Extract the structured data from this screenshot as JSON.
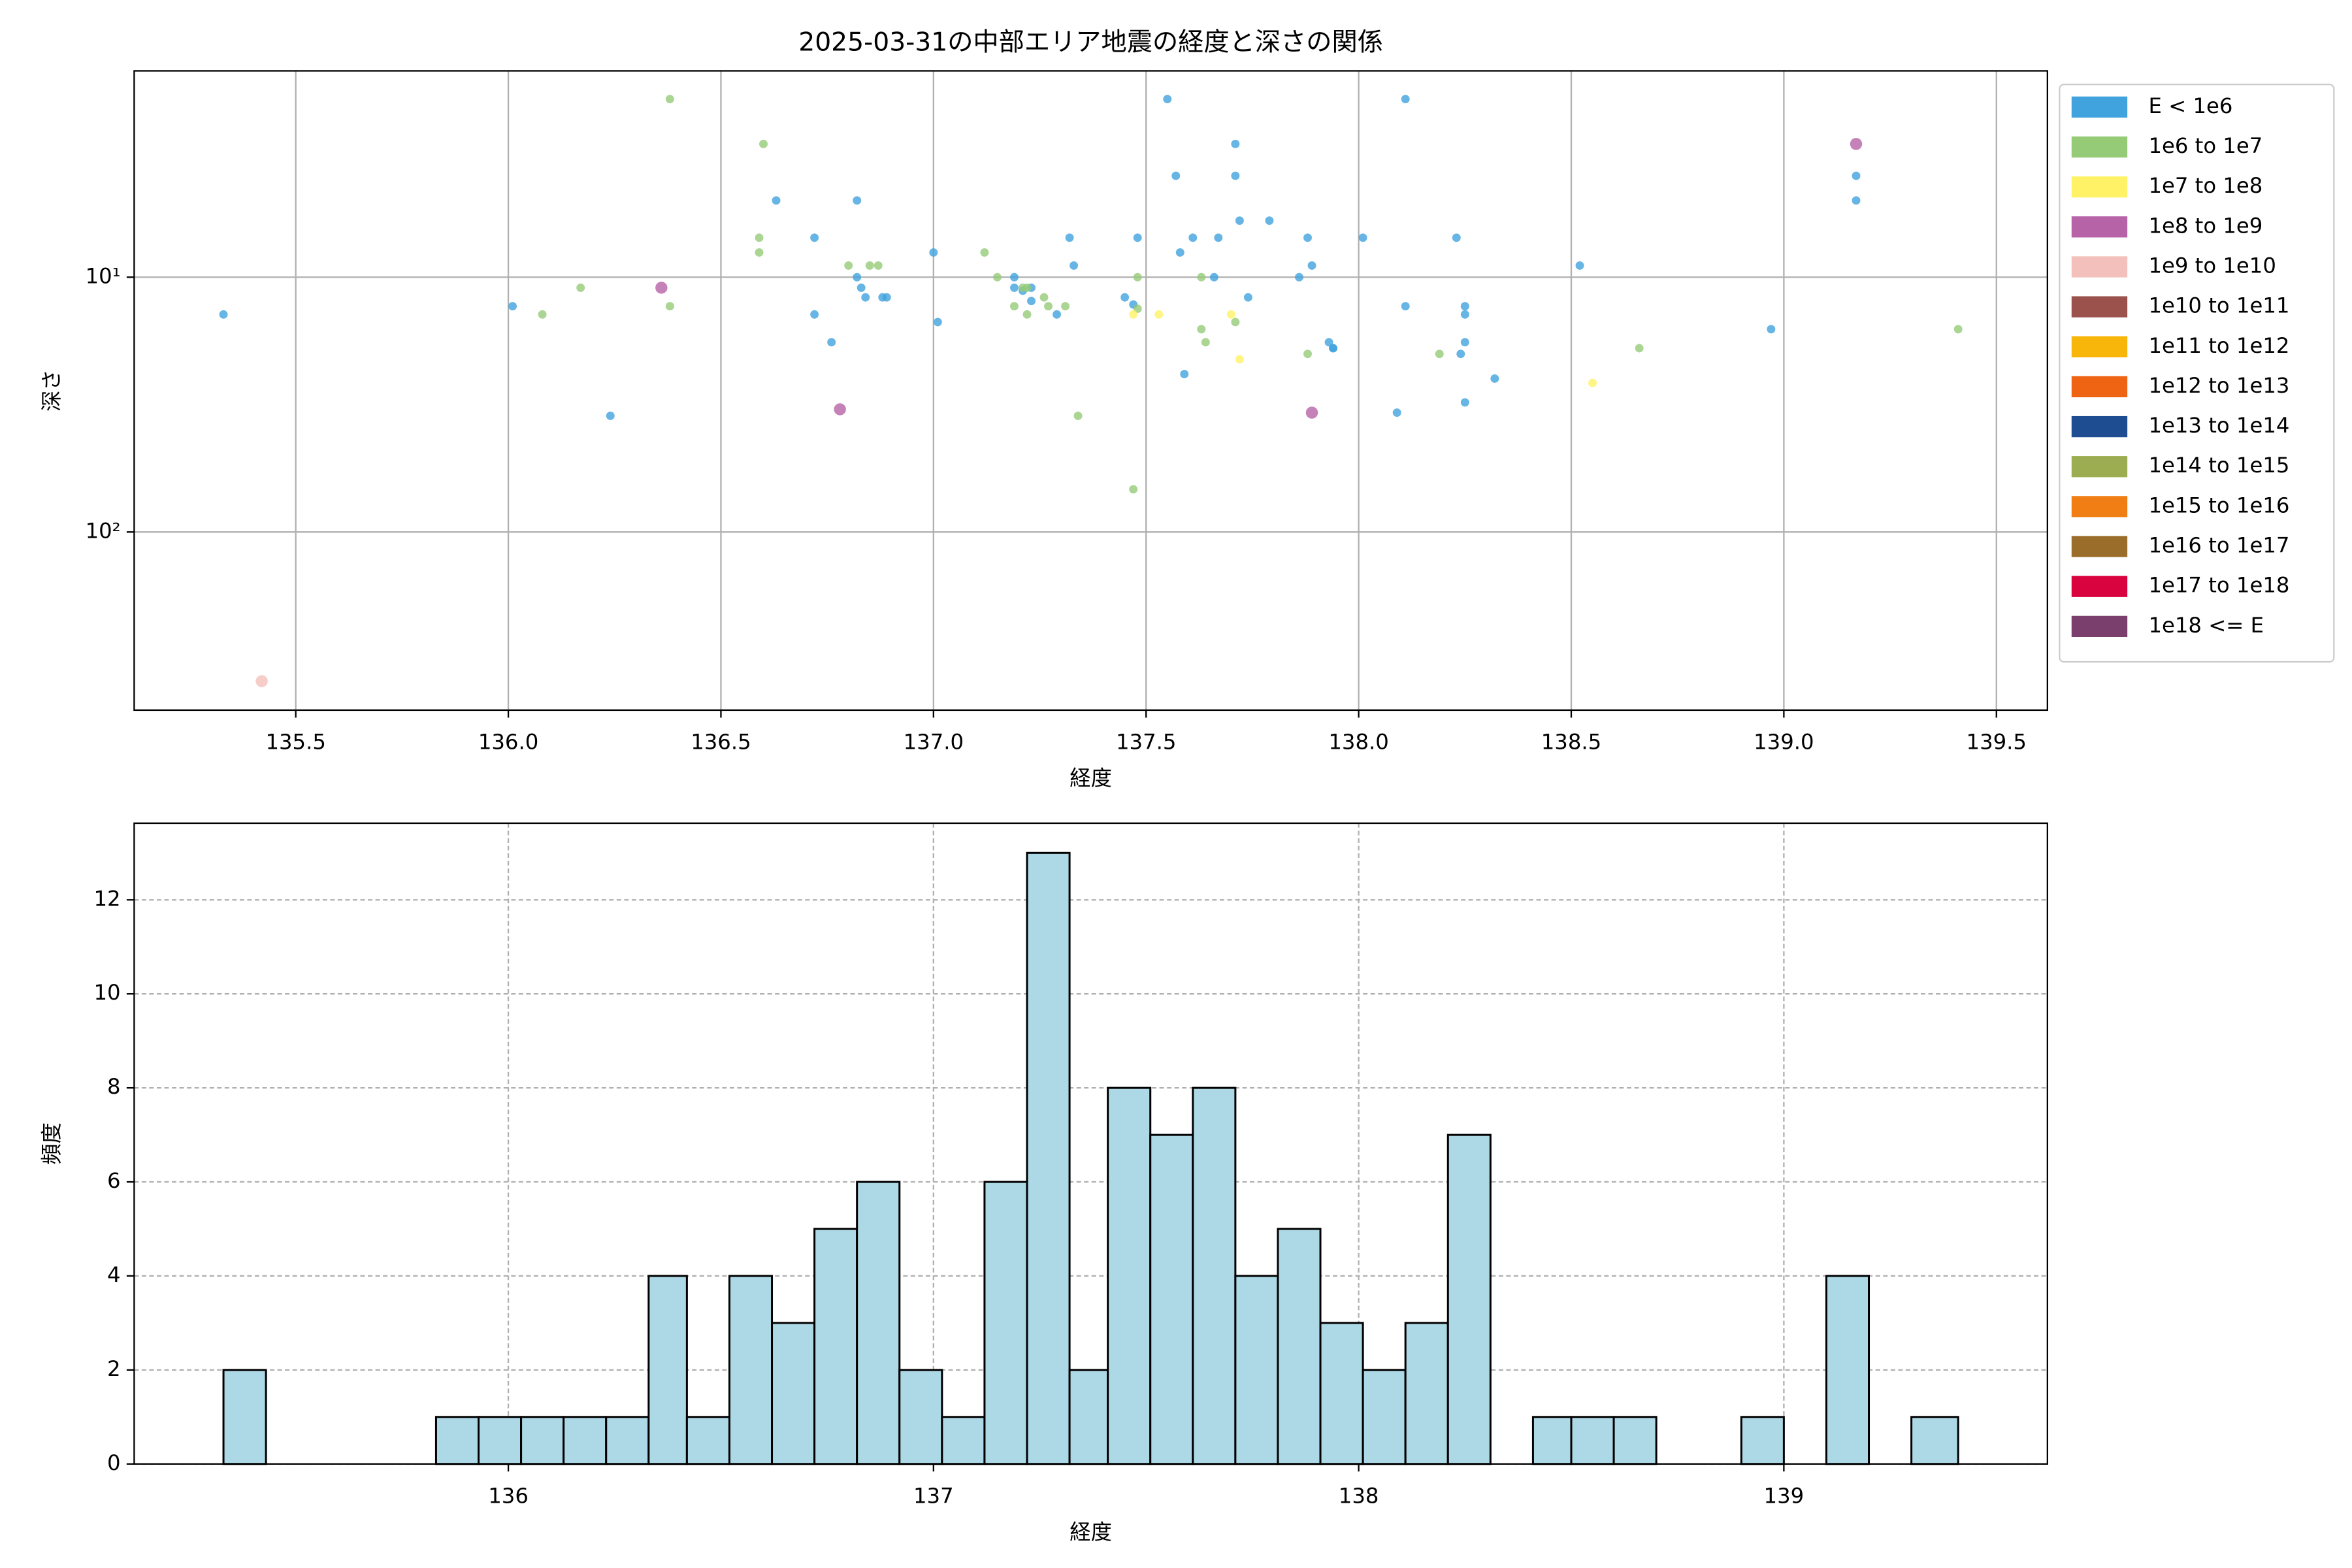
{
  "chart_data": [
    {
      "type": "scatter",
      "title": "2025-03-31の中部エリア地震の経度と深さの関係",
      "xlabel": "経度",
      "ylabel": "深さ",
      "xlim": [
        135.12,
        139.62
      ],
      "ylim": [
        500,
        1.55
      ],
      "log_y": true,
      "grid": true,
      "legend": "outside right",
      "xticks": [
        135.5,
        {
          "value": 136,
          "label": "136.0"
        },
        136.5,
        {
          "value": 137,
          "label": "137.0"
        },
        137.5,
        {
          "value": 138,
          "label": "138.0"
        },
        138.5,
        {
          "value": 139,
          "label": "139.0"
        },
        139.5
      ],
      "yticks": [
        {
          "value": 10,
          "label": "10¹"
        },
        {
          "value": 100,
          "label": "10²"
        }
      ],
      "series": [
        {
          "name": "E < 1e6",
          "color": "#41a3dd",
          "x": [
            135.33,
            136.01,
            136.24,
            136.63,
            136.72,
            136.72,
            136.76,
            136.82,
            136.82,
            136.83,
            136.84,
            136.88,
            136.89,
            137.0,
            137.01,
            137.19,
            137.19,
            137.21,
            137.23,
            137.23,
            137.29,
            137.32,
            137.33,
            137.45,
            137.47,
            137.48,
            137.55,
            137.57,
            137.58,
            137.59,
            137.61,
            137.66,
            137.67,
            137.71,
            137.71,
            137.72,
            137.74,
            137.79,
            137.86,
            137.88,
            137.89,
            137.93,
            137.94,
            137.94,
            138.01,
            138.09,
            138.11,
            138.11,
            138.23,
            138.25,
            138.25,
            138.25,
            138.24,
            138.25,
            138.32,
            138.52,
            138.97,
            139.17,
            139.17
          ],
          "values": [
            14,
            13,
            35,
            5,
            7,
            14,
            18,
            5,
            10,
            11,
            12,
            12,
            12,
            8,
            15,
            10,
            11,
            11.3,
            11,
            12.4,
            14,
            7,
            9,
            12,
            12.8,
            7,
            2,
            4,
            8,
            24,
            7,
            10,
            7,
            3,
            4,
            6,
            12,
            6,
            10,
            7,
            9,
            18,
            19,
            19,
            7,
            34,
            13,
            2,
            7,
            13,
            14,
            18,
            20,
            31,
            25,
            9,
            16,
            4,
            5
          ]
        },
        {
          "name": "1e6 to 1e7",
          "color": "#95cb77",
          "x": [
            136.17,
            136.08,
            136.38,
            136.38,
            136.6,
            136.59,
            136.59,
            136.8,
            136.85,
            136.87,
            137.12,
            137.15,
            137.19,
            137.21,
            137.22,
            137.22,
            137.26,
            137.27,
            137.31,
            137.34,
            137.47,
            137.48,
            137.48,
            137.63,
            137.63,
            137.64,
            137.71,
            137.88,
            138.19,
            138.66,
            139.41
          ],
          "values": [
            11,
            14,
            13,
            2,
            3,
            7,
            8,
            9,
            9,
            9,
            8,
            10,
            13,
            11,
            11,
            14,
            12,
            13,
            13,
            35,
            68,
            10,
            13.3,
            10,
            16,
            18,
            15,
            20,
            20,
            19,
            16
          ]
        },
        {
          "name": "1e7 to 1e8",
          "color": "#fff266",
          "x": [
            137.53,
            137.47,
            137.7,
            137.72,
            138.55
          ],
          "values": [
            14,
            14,
            14,
            21,
            26
          ]
        },
        {
          "name": "1e8 to 1e9",
          "color": "#b763a8",
          "x": [
            136.36,
            136.78,
            137.89,
            139.17
          ],
          "values": [
            11,
            33,
            34,
            3
          ]
        },
        {
          "name": "1e9 to 1e10",
          "color": "#f4c0bb",
          "x": [
            135.42
          ],
          "values": [
            385
          ]
        },
        {
          "name": "1e10 to 1e11",
          "color": "#9b524d",
          "x": [],
          "values": []
        },
        {
          "name": "1e11 to 1e12",
          "color": "#f8b50a",
          "x": [],
          "values": []
        },
        {
          "name": "1e12 to 1e13",
          "color": "#ef6412",
          "x": [],
          "values": []
        },
        {
          "name": "1e13 to 1e14",
          "color": "#1e4d92",
          "x": [],
          "values": []
        },
        {
          "name": "1e14 to 1e15",
          "color": "#9bad50",
          "x": [],
          "values": []
        },
        {
          "name": "1e15 to 1e16",
          "color": "#f07e14",
          "x": [],
          "values": []
        },
        {
          "name": "1e16 to 1e17",
          "color": "#9b6d2a",
          "x": [],
          "values": []
        },
        {
          "name": "1e17 to 1e18",
          "color": "#d9043f",
          "x": [],
          "values": []
        },
        {
          "name": "1e18 <= E",
          "color": "#7a3f6c",
          "x": [],
          "values": []
        }
      ]
    },
    {
      "type": "histogram",
      "xlabel": "経度",
      "ylabel": "頻度",
      "color": "#add8e6",
      "edgecolor": "#000000",
      "grid": true,
      "xlim": [
        135.12,
        139.62
      ],
      "ylim": [
        0,
        13.63
      ],
      "xticks": [
        136,
        137,
        138,
        139
      ],
      "yticks": [
        0,
        2,
        4,
        6,
        8,
        10,
        12
      ],
      "bins": [
        135.33,
        135.43,
        135.53,
        135.63,
        135.73,
        135.83,
        135.93,
        136.03,
        136.13,
        136.23,
        136.33,
        136.42,
        136.52,
        136.62,
        136.72,
        136.82,
        136.92,
        137.02,
        137.12,
        137.22,
        137.32,
        137.41,
        137.51,
        137.61,
        137.71,
        137.81,
        137.91,
        138.01,
        138.11,
        138.21,
        138.31,
        138.41,
        138.5,
        138.6,
        138.7,
        138.8,
        138.9,
        139.0,
        139.1,
        139.2,
        139.3,
        139.41
      ],
      "values": [
        2,
        0,
        0,
        0,
        0,
        1,
        1,
        1,
        1,
        1,
        4,
        1,
        4,
        3,
        5,
        6,
        2,
        1,
        6,
        13,
        2,
        8,
        7,
        8,
        4,
        5,
        3,
        2,
        3,
        7,
        0,
        1,
        1,
        1,
        0,
        0,
        1,
        0,
        4,
        0,
        1
      ]
    }
  ]
}
